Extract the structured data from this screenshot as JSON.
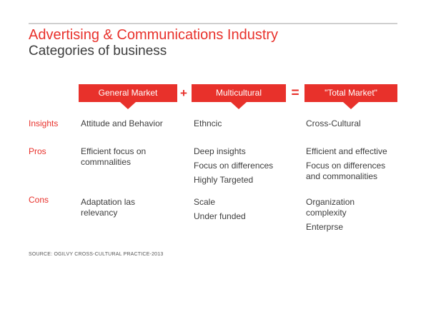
{
  "header": {
    "title": "Advertising  & Communications Industry",
    "subtitle": "Categories of business"
  },
  "columns": [
    {
      "label": "General Market"
    },
    {
      "label": "Multicultural"
    },
    {
      "label": "\"Total Market\""
    }
  ],
  "operators": {
    "plus": "+",
    "equals": "="
  },
  "rows": {
    "insights": {
      "label": "Insights",
      "general": "Attitude and Behavior",
      "multicultural": "Ethncic",
      "total": "Cross-Cultural"
    },
    "pros": {
      "label": "Pros",
      "general": [
        "Efficient focus on\ncommnalities"
      ],
      "multicultural": [
        "Deep insights",
        "Focus on differences",
        "Highly Targeted"
      ],
      "total": [
        "Efficient and effective",
        "Focus on differences\nand commonalities"
      ]
    },
    "cons": {
      "label": "Cons",
      "general": [
        "Adaptation las\nrelevancy"
      ],
      "multicultural": [
        "Scale",
        "Under funded"
      ],
      "total": [
        "Organization\ncomplexity",
        "Enterprse"
      ]
    }
  },
  "source": "SOURCE: OGILVY CROSS-CULTURAL PRACTICE-2013",
  "colors": {
    "accent": "#e8312b",
    "text": "#3d3d3d",
    "rule": "#cfcfcf"
  }
}
